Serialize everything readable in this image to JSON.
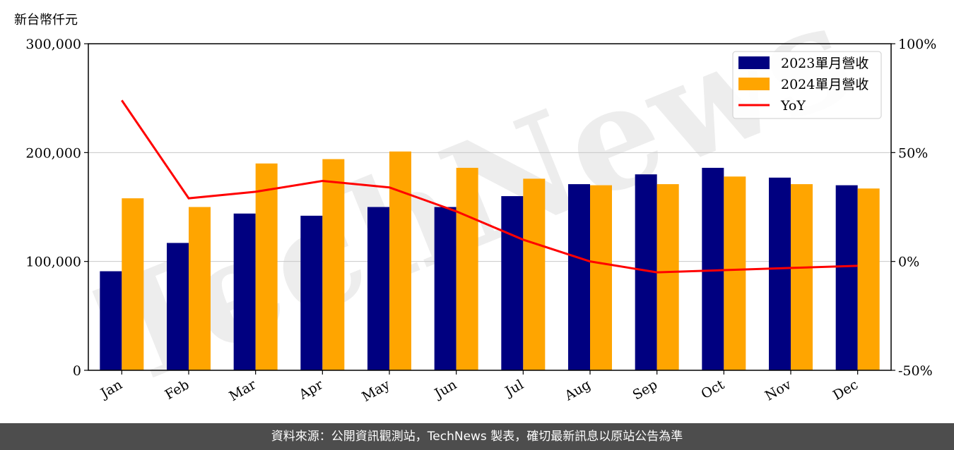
{
  "chart_data": {
    "type": "bar",
    "unit_label": "新台幣仟元",
    "categories": [
      "Jan",
      "Feb",
      "Mar",
      "Apr",
      "May",
      "Jun",
      "Jul",
      "Aug",
      "Sep",
      "Oct",
      "Nov",
      "Dec"
    ],
    "series": [
      {
        "name": "2023單月營收",
        "type": "bar",
        "color": "#000080",
        "values": [
          91000,
          117000,
          144000,
          142000,
          150000,
          150000,
          160000,
          171000,
          180000,
          186000,
          177000,
          170000
        ]
      },
      {
        "name": "2024單月營收",
        "type": "bar",
        "color": "#FFA500",
        "values": [
          158000,
          150000,
          190000,
          194000,
          201000,
          186000,
          176000,
          170000,
          171000,
          178000,
          171000,
          167000
        ]
      },
      {
        "name": "YoY",
        "type": "line",
        "color": "#FF0000",
        "axis": "right",
        "values": [
          74,
          29,
          32,
          37,
          34,
          23,
          10,
          0,
          -5,
          -4,
          -3,
          -2
        ]
      }
    ],
    "ylim": [
      0,
      300000
    ],
    "yticks": [
      "0",
      "100,000",
      "200,000",
      "300,000"
    ],
    "y2lim": [
      -50,
      100
    ],
    "y2ticks": [
      "-50%",
      "0%",
      "50%",
      "100%"
    ],
    "grid": "horizontal",
    "legend": "top-right",
    "watermark": "TechNews"
  },
  "footer": {
    "text": "資料來源：公開資訊觀測站，TechNews 製表，確切最新訊息以原站公告為準"
  }
}
